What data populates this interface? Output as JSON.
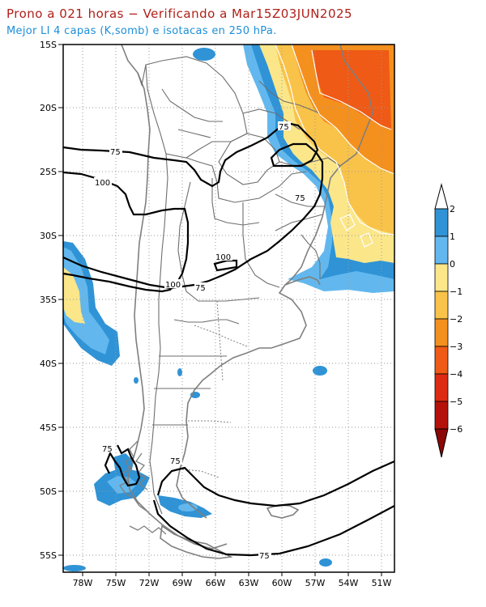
{
  "header": {
    "title": "Prono a 021 horas − Verificando a Mar15Z03JUN2025",
    "subtitle": "Mejor LI 4 capas (K,somb) e isotacas en 250 hPa."
  },
  "map": {
    "lat_ticks": [
      "15S",
      "20S",
      "25S",
      "30S",
      "35S",
      "40S",
      "45S",
      "50S",
      "55S"
    ],
    "lon_ticks": [
      "78W",
      "75W",
      "72W",
      "69W",
      "66W",
      "63W",
      "60W",
      "57W",
      "54W",
      "51W"
    ],
    "isotach_labels": [
      "75",
      "75",
      "75",
      "100",
      "100",
      "100",
      "75",
      "75",
      "75",
      "75"
    ]
  },
  "legend": {
    "labels": [
      "2",
      "1",
      "0",
      "−1",
      "−2",
      "−3",
      "−4",
      "−5",
      "−6"
    ],
    "colors": [
      "#2f93d6",
      "#62b8ee",
      "#fbe68a",
      "#f9c34a",
      "#f4901e",
      "#ef5a16",
      "#dd2a12",
      "#b5110b",
      "#8c0707"
    ],
    "top_color": "#ffffff",
    "bottom_color": "#8c0707"
  },
  "colors": {
    "blue_dark": "#2f93d6",
    "blue_light": "#62b8ee",
    "yellow_light": "#fbe68a",
    "yellow": "#f9c34a",
    "orange": "#f4901e",
    "red_orange": "#ef5a16",
    "coast": "#808080",
    "isotach": "#000000"
  }
}
